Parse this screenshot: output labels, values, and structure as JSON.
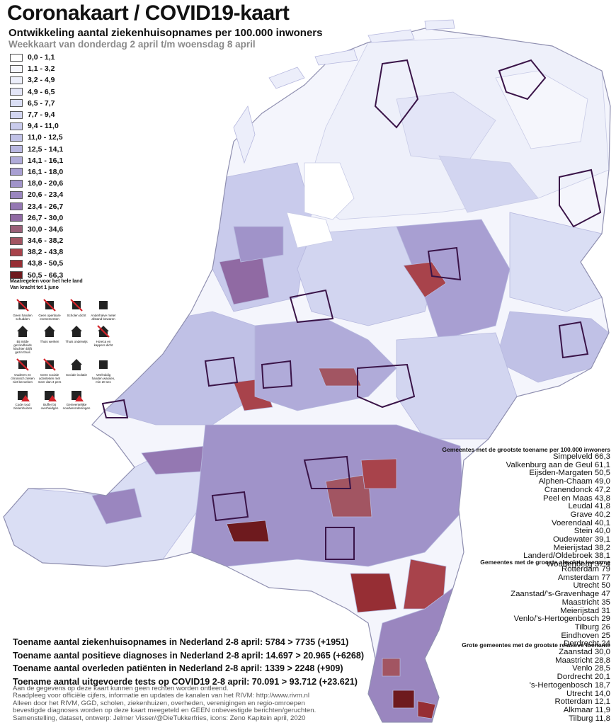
{
  "title": "Coronakaart / COVID19-kaart",
  "subtitle": "Ontwikkeling aantal ziekenhuisopnames per 100.000 inwoners",
  "week_label": "Weekkaart van donderdag 2 april t/m woensdag 8 april",
  "legend": [
    {
      "label": "0,0 - 1,1",
      "color": "#ffffff"
    },
    {
      "label": "1,1 - 3,2",
      "color": "#f5f6fc"
    },
    {
      "label": "3,2 - 4,9",
      "color": "#eceefa"
    },
    {
      "label": "4,9 - 6,5",
      "color": "#e3e5f7"
    },
    {
      "label": "6,5 - 7,7",
      "color": "#dadef4"
    },
    {
      "label": "7,7 - 9,4",
      "color": "#d2d5f0"
    },
    {
      "label": "9,4 - 11,0",
      "color": "#c9cbec"
    },
    {
      "label": "11,0 - 12,5",
      "color": "#c0c1e6"
    },
    {
      "label": "12,5 - 14,1",
      "color": "#b8b6e0"
    },
    {
      "label": "14,1 - 16,1",
      "color": "#b0abd9"
    },
    {
      "label": "16,1 - 18,0",
      "color": "#a89fd2"
    },
    {
      "label": "18,0 - 20,6",
      "color": "#a093c9"
    },
    {
      "label": "20,6 - 23,4",
      "color": "#9a86bf"
    },
    {
      "label": "23,4 - 26,7",
      "color": "#9478b2"
    },
    {
      "label": "26,7 - 30,0",
      "color": "#906aa3"
    },
    {
      "label": "30,0 - 34,6",
      "color": "#9a6078"
    },
    {
      "label": "34,6 - 38,2",
      "color": "#a25562"
    },
    {
      "label": "38,2 - 43,8",
      "color": "#a8434b"
    },
    {
      "label": "43,8 - 50,5",
      "color": "#962e34"
    },
    {
      "label": "50,5 - 66,3",
      "color": "#6e1a1e"
    }
  ],
  "measures_title": [
    "Maatregelen voor het hele land",
    "Van kracht tot 1 juno"
  ],
  "measures": [
    {
      "icon": "no-handshake-icon",
      "label": "Geen handen schudden"
    },
    {
      "icon": "no-gatherings-icon",
      "label": "Geen openbare evenementen"
    },
    {
      "icon": "schools-closed-icon",
      "label": "Scholen dicht"
    },
    {
      "icon": "keep-distance-icon",
      "label": "Anderhalve meter afstand bewaren"
    },
    {
      "icon": "stay-home-sick-icon",
      "label": "Bij milde gezondheids klachten blijft gezin thuis"
    },
    {
      "icon": "work-home-icon",
      "label": "Thuis werken"
    },
    {
      "icon": "home-education-icon",
      "label": "Thuis onderwijs"
    },
    {
      "icon": "horeca-closed-icon",
      "label": "Horeca en kappers dicht"
    },
    {
      "icon": "protect-elderly-icon",
      "label": "Ouderen en chronisch zieken niet bezoeken"
    },
    {
      "icon": "no-contact-sports-icon",
      "label": "Geen sociale activiteiten met meer dan 3 pers"
    },
    {
      "icon": "social-isolation-icon",
      "label": "Sociale isolatie"
    },
    {
      "icon": "wash-hands-icon",
      "label": "Veelvuldig handen wassen, min 20 sec"
    },
    {
      "icon": "code-red-icon",
      "label": "Code rood ziekenhuizen"
    },
    {
      "icon": "buffer-icon",
      "label": "Buffer bij overheidgen"
    },
    {
      "icon": "municipal-icon",
      "label": "Gemeentelijke noodverordeningen"
    }
  ],
  "rankings": {
    "per100k": {
      "heading": "Gemeentes met de grootste toename per 100.000 inwoners",
      "items": [
        {
          "name": "Simpelveld",
          "value": "66,3"
        },
        {
          "name": "Valkenburg aan de Geul",
          "value": "61,1"
        },
        {
          "name": "Eijsden-Margaten",
          "value": "50,5"
        },
        {
          "name": "Alphen-Chaam",
          "value": "49,0"
        },
        {
          "name": "Cranendonck",
          "value": "47,2"
        },
        {
          "name": "Peel en Maas",
          "value": "43,8"
        },
        {
          "name": "Leudal",
          "value": "41,8"
        },
        {
          "name": "Grave",
          "value": "40,2"
        },
        {
          "name": "Voerendaal",
          "value": "40,1"
        },
        {
          "name": "Stein",
          "value": "40,0"
        },
        {
          "name": "Oudewater",
          "value": "39,1"
        },
        {
          "name": "Meierijstad",
          "value": "38,2"
        },
        {
          "name": "Landerd/Oldebroek",
          "value": "38,1"
        },
        {
          "name": "Woudenberg",
          "value": "37,4"
        }
      ]
    },
    "absolute": {
      "heading": "Gemeentes met de grooste absolute toename",
      "items": [
        {
          "name": "Rotterdam",
          "value": "79"
        },
        {
          "name": "Amsterdam",
          "value": "77"
        },
        {
          "name": "Utrecht",
          "value": "50"
        },
        {
          "name": "Zaanstad/'s-Gravenhage",
          "value": "47"
        },
        {
          "name": "Maastricht",
          "value": "35"
        },
        {
          "name": "Meierijstad",
          "value": "31"
        },
        {
          "name": "Venlo/'s-Hertogenbosch",
          "value": "29"
        },
        {
          "name": "Tilburg",
          "value": "26"
        },
        {
          "name": "Eindhoven",
          "value": "25"
        },
        {
          "name": "Dordrecht",
          "value": "24"
        }
      ]
    },
    "relative": {
      "heading": "Grote gemeentes met de grootste relatieve toename",
      "items": [
        {
          "name": "Zaanstad",
          "value": "30,0"
        },
        {
          "name": "Maastricht",
          "value": "28,8"
        },
        {
          "name": "Venlo",
          "value": "28,5"
        },
        {
          "name": "Dordrecht",
          "value": "20,1"
        },
        {
          "name": "'s-Hertogenbosch",
          "value": "18,7"
        },
        {
          "name": "Utrecht",
          "value": "14,0"
        },
        {
          "name": "Rotterdam",
          "value": "12,1"
        },
        {
          "name": "Alkmaar",
          "value": "11,9"
        },
        {
          "name": "Tilburg",
          "value": "11,8"
        }
      ]
    }
  },
  "totals": [
    "Toename aantal ziekenhuisopnames in Nederland 2-8 april: 5784 > 7735 (+1951)",
    "Toename aantal positieve diagnoses in Nederland 2-8 april: 14.697 > 20.965 (+6268)",
    "Toename aantal overleden patiënten in Nederland 2-8 april: 1339 > 2248 (+909)",
    "Toename aantal uitgevoerde tests op COVID19 2-8 april: 70.091 > 93.712 (+23.621)"
  ],
  "disclaimer": [
    "Aan de gegevens op deze kaart kunnen geen rechten worden ontleend.",
    "Raadpleeg voor officiële cijfers, informatie en updates de kanalen van het RIVM: http://www.rivm.nl",
    "Alleen door het RIVM, GGD, scholen, ziekenhuizen, overheden, verenigingen en regio-omroepen",
    "bevestigde diagnoses worden op deze kaart meegeteld en GEEN onbevestigde berichten/geruchten.",
    "Samenstelling, dataset, ontwerp: Jelmer Visser/@DieTukkerfries, icons: Zeno Kapitein april, 2020"
  ],
  "map": {
    "outline_color": "#ffffff",
    "region_border_color": "#3a1448"
  }
}
